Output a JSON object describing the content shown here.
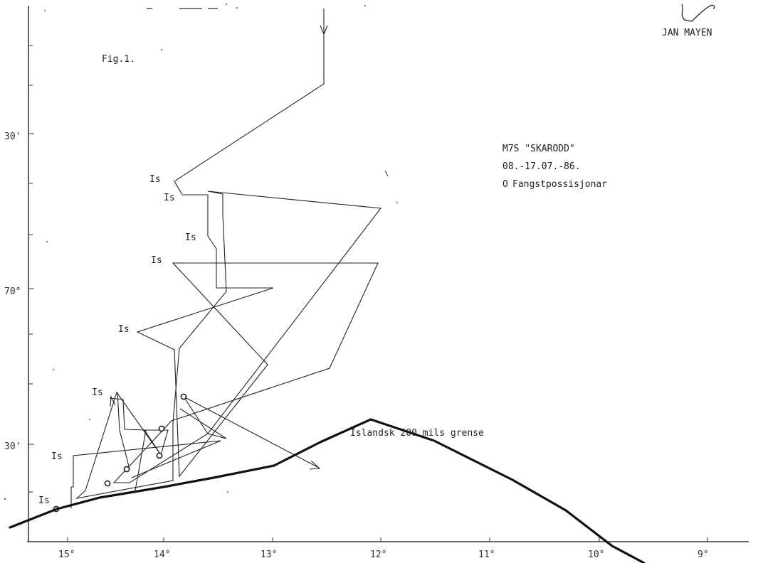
{
  "figure": {
    "label": "Fig.1.",
    "island": "JAN MAYEN"
  },
  "legend": {
    "vessel": "M7S \"SKARODD\"",
    "dates": "08.-17.07.-86.",
    "station_label": "Fangstpossisjonar",
    "station_symbol": "O"
  },
  "border": {
    "label": "Islandsk  200 mils grense"
  },
  "ice_label": "Is",
  "lon_ticks": [
    "15°",
    "14°",
    "13°",
    "12°",
    "11°",
    "10°",
    "9°"
  ],
  "lat_ticks": [
    "30'",
    "70°",
    "30'"
  ],
  "colors": {
    "ink": "#222222",
    "paper": "#ffffff"
  }
}
